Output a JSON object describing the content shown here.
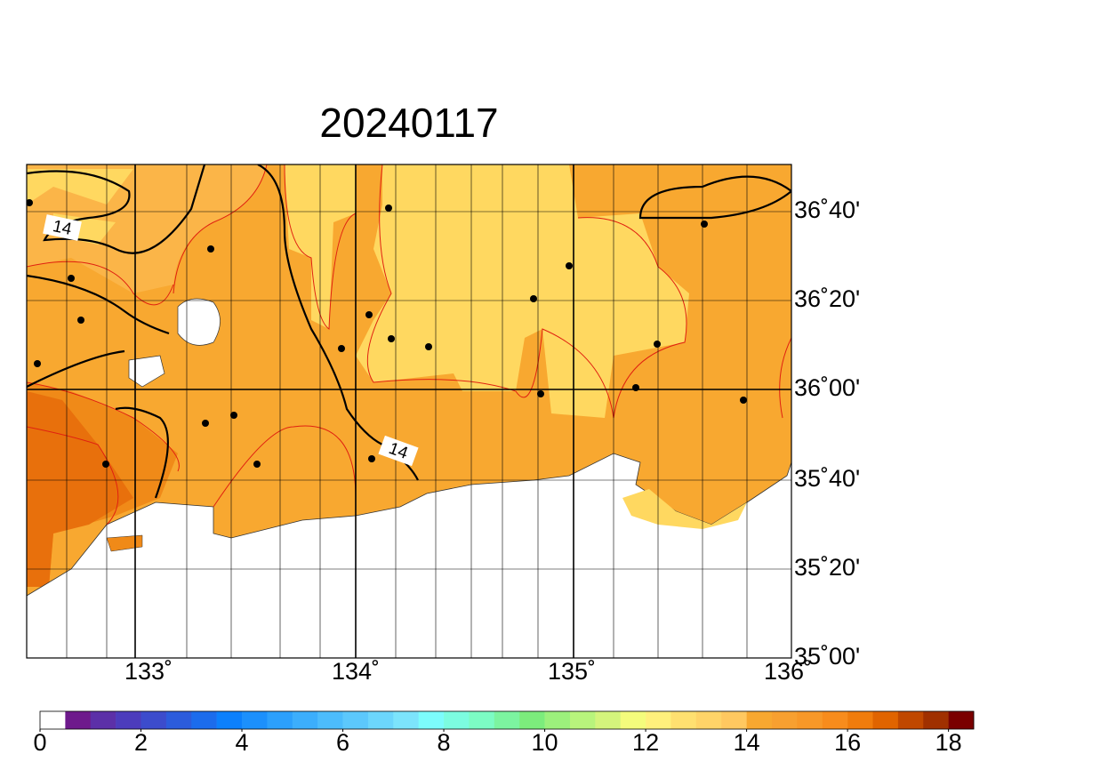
{
  "map": {
    "title": "20240117",
    "lat_labels": [
      "36˚40'",
      "36˚20'",
      "36˚00'",
      "35˚40'",
      "35˚20'",
      "35˚00'"
    ],
    "lon_labels": [
      "133˚",
      "134˚",
      "135˚",
      "136˚"
    ],
    "contour_labels": [
      "14",
      "14"
    ]
  },
  "chart_data": {
    "type": "colorbar",
    "xlim": [
      0,
      18.5
    ],
    "xticks": [
      0,
      2,
      4,
      6,
      8,
      10,
      12,
      14,
      16,
      18
    ],
    "colors": [
      "#ffffff",
      "#6e1a8c",
      "#5c30a8",
      "#4c3cbc",
      "#3c4ccc",
      "#2c5cdc",
      "#1c6cec",
      "#0c80fc",
      "#1c90fc",
      "#2ca0fc",
      "#3caefc",
      "#4cbcfc",
      "#5cc8fc",
      "#6cd6fc",
      "#7ce4fc",
      "#7cfcfc",
      "#7cfce0",
      "#7cfcc4",
      "#7cf4a0",
      "#7cec7c",
      "#9cf07c",
      "#b8f47c",
      "#d4f47c",
      "#f4fc7c",
      "#fff07c",
      "#ffe070",
      "#ffd468",
      "#ffc860",
      "#f8a830",
      "#f8a030",
      "#f89828",
      "#f88c1c",
      "#f07c0c",
      "#e06400",
      "#c04800",
      "#a03000",
      "#7a0000"
    ]
  }
}
